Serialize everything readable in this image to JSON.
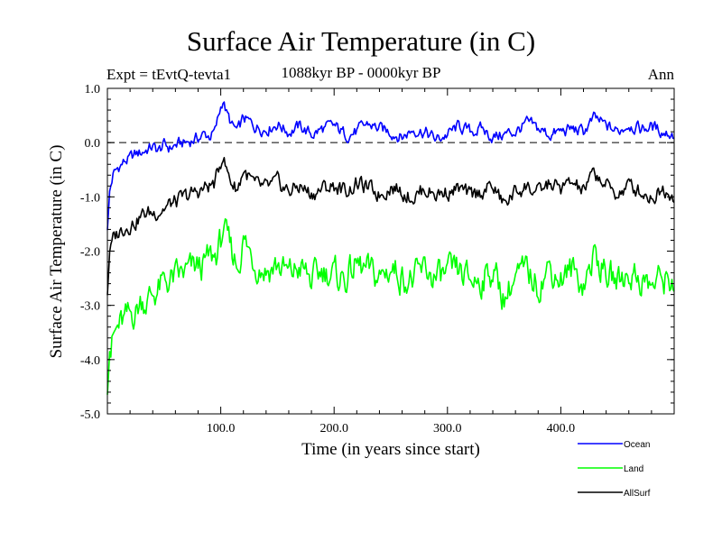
{
  "header": {
    "title": "Surface Air Temperature (in C)",
    "experiment": "Expt = tEvtQ-tevta1",
    "period": "1088kyr BP - 0000kyr BP",
    "season": "Ann"
  },
  "colors": {
    "ocean": "#0000ff",
    "land": "#00ff00",
    "allsurf": "#000000"
  },
  "chart_data": {
    "type": "line",
    "title": "Surface Air Temperature (in C)",
    "xlabel": "Time (in years since start)",
    "ylabel": "Surface Air Temperature (in C)",
    "xlim": [
      0,
      500
    ],
    "ylim": [
      -5.0,
      1.0
    ],
    "xticks": [
      100,
      200,
      300,
      400
    ],
    "xtick_labels": [
      "100.0",
      "200.0",
      "300.0",
      "400.0"
    ],
    "yticks": [
      1.0,
      0.0,
      -1.0,
      -2.0,
      -3.0,
      -4.0,
      -5.0
    ],
    "ytick_labels": [
      "1.0",
      "0.0",
      "-1.0",
      "-2.0",
      "-3.0",
      "-4.0",
      "-5.0"
    ],
    "zero_line": true,
    "legend": [
      "Ocean",
      "Land",
      "AllSurf"
    ],
    "legend_position": "bottom-right",
    "series": [
      {
        "name": "Ocean",
        "color": "#0000ff",
        "x": [
          0,
          2,
          5,
          10,
          15,
          20,
          25,
          30,
          35,
          40,
          45,
          50,
          55,
          60,
          65,
          70,
          75,
          80,
          85,
          90,
          95,
          100,
          102,
          105,
          110,
          115,
          120,
          130,
          140,
          150,
          160,
          170,
          180,
          190,
          200,
          210,
          220,
          230,
          240,
          250,
          260,
          270,
          280,
          290,
          300,
          310,
          320,
          330,
          340,
          350,
          360,
          370,
          380,
          390,
          400,
          410,
          420,
          430,
          440,
          450,
          460,
          470,
          480,
          490,
          500
        ],
        "values": [
          -1.6,
          -0.9,
          -0.6,
          -0.45,
          -0.35,
          -0.3,
          -0.22,
          -0.18,
          -0.12,
          -0.08,
          -0.15,
          -0.05,
          -0.1,
          -0.05,
          -0.02,
          0.0,
          0.05,
          0.08,
          0.15,
          0.12,
          0.2,
          0.65,
          0.8,
          0.55,
          0.3,
          0.2,
          0.45,
          0.3,
          0.25,
          0.35,
          0.2,
          0.3,
          0.15,
          0.25,
          0.3,
          0.15,
          0.2,
          0.35,
          0.25,
          0.2,
          0.1,
          0.25,
          0.2,
          0.05,
          0.15,
          0.3,
          0.2,
          0.25,
          0.1,
          0.15,
          0.2,
          0.35,
          0.25,
          0.15,
          0.2,
          0.25,
          0.2,
          0.45,
          0.3,
          0.2,
          0.35,
          0.25,
          0.3,
          0.2,
          0.15
        ]
      },
      {
        "name": "Land",
        "color": "#00ff00",
        "x": [
          0,
          2,
          5,
          10,
          15,
          20,
          25,
          30,
          35,
          40,
          45,
          50,
          55,
          60,
          65,
          70,
          75,
          80,
          85,
          90,
          95,
          100,
          102,
          105,
          110,
          115,
          120,
          130,
          140,
          150,
          160,
          170,
          180,
          190,
          200,
          210,
          220,
          230,
          240,
          250,
          260,
          270,
          280,
          290,
          300,
          310,
          320,
          330,
          340,
          350,
          360,
          370,
          380,
          390,
          400,
          410,
          420,
          430,
          440,
          450,
          460,
          470,
          480,
          490,
          500
        ],
        "values": [
          -4.6,
          -3.8,
          -3.6,
          -3.4,
          -3.3,
          -3.2,
          -3.1,
          -2.9,
          -2.9,
          -2.8,
          -2.7,
          -2.6,
          -2.55,
          -2.5,
          -2.45,
          -2.4,
          -2.35,
          -2.3,
          -2.25,
          -2.15,
          -2.1,
          -1.85,
          -1.55,
          -1.8,
          -2.05,
          -2.25,
          -1.8,
          -2.2,
          -2.35,
          -2.25,
          -2.45,
          -2.3,
          -2.55,
          -2.35,
          -2.45,
          -2.5,
          -2.25,
          -2.4,
          -2.5,
          -2.3,
          -2.45,
          -2.55,
          -2.35,
          -2.5,
          -2.45,
          -2.4,
          -2.55,
          -2.5,
          -2.35,
          -2.85,
          -2.5,
          -2.4,
          -2.6,
          -2.3,
          -2.5,
          -2.35,
          -2.6,
          -2.05,
          -2.45,
          -2.55,
          -2.4,
          -2.5,
          -2.65,
          -2.5,
          -2.55
        ]
      },
      {
        "name": "AllSurf",
        "color": "#000000",
        "x": [
          0,
          2,
          5,
          10,
          15,
          20,
          25,
          30,
          35,
          40,
          45,
          50,
          55,
          60,
          65,
          70,
          75,
          80,
          85,
          90,
          95,
          100,
          102,
          105,
          110,
          115,
          120,
          130,
          140,
          150,
          160,
          170,
          180,
          190,
          200,
          210,
          220,
          230,
          240,
          250,
          260,
          270,
          280,
          290,
          300,
          310,
          320,
          330,
          340,
          350,
          360,
          370,
          380,
          390,
          400,
          410,
          420,
          430,
          440,
          450,
          460,
          470,
          480,
          490,
          500
        ],
        "values": [
          -2.8,
          -2.0,
          -1.8,
          -1.65,
          -1.55,
          -1.5,
          -1.45,
          -1.35,
          -1.3,
          -1.3,
          -1.25,
          -1.2,
          -1.15,
          -1.1,
          -1.05,
          -1.0,
          -0.95,
          -0.9,
          -0.85,
          -0.8,
          -0.75,
          -0.35,
          -0.2,
          -0.5,
          -0.75,
          -0.85,
          -0.5,
          -0.8,
          -0.85,
          -0.75,
          -0.9,
          -0.8,
          -0.95,
          -0.85,
          -0.8,
          -0.9,
          -0.75,
          -0.85,
          -0.95,
          -0.8,
          -0.9,
          -1.0,
          -0.85,
          -0.95,
          -0.9,
          -0.85,
          -1.0,
          -0.9,
          -0.8,
          -1.15,
          -0.9,
          -0.8,
          -0.95,
          -0.75,
          -0.85,
          -0.75,
          -0.9,
          -0.55,
          -0.8,
          -0.95,
          -0.8,
          -0.9,
          -1.0,
          -0.85,
          -0.95
        ]
      }
    ]
  }
}
